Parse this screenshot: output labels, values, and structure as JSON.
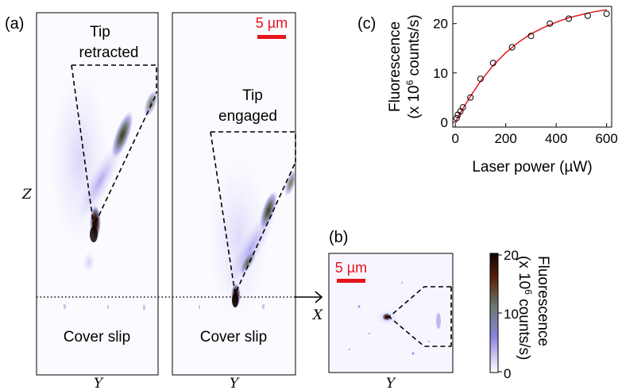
{
  "panel_a": {
    "label": "(a)",
    "left_image": {
      "label_line1": "Tip",
      "label_line2": "retracted"
    },
    "right_image": {
      "label_line1": "Tip",
      "label_line2": "engaged"
    },
    "scalebar": "5 µm",
    "coverslip_left": "Cover slip",
    "coverslip_right": "Cover slip",
    "axis_z": "Z",
    "axis_y_left": "Y",
    "axis_y_right": "Y"
  },
  "panel_b": {
    "label": "(b)",
    "scalebar": "5 µm",
    "axis_x": "X",
    "axis_y": "Y",
    "colorbar": {
      "ticks": [
        "20",
        "10",
        "0"
      ],
      "title_line1": "Fluorescence",
      "title_line2_pre": "(x 10",
      "title_line2_sup": "6",
      "title_line2_post": " counts/s)",
      "colors": [
        "#ffffff",
        "#8c84e0",
        "#6b7a72",
        "#5a1e08",
        "#140402"
      ]
    }
  },
  "panel_c": {
    "label": "(c)",
    "ylabel_line1": "Fluorescence",
    "ylabel_line2_pre": "(x 10",
    "ylabel_line2_sup": "6",
    "ylabel_line2_post": " counts/s)",
    "xlabel": "Laser power (µW)",
    "xticks": [
      "0",
      "200",
      "400",
      "600"
    ],
    "yticks": [
      "0",
      "10",
      "20"
    ],
    "fit_color": "#e8141c"
  },
  "chart_data": {
    "type": "scatter",
    "xlabel": "Laser power (µW)",
    "ylabel": "Fluorescence (x 10^6 counts/s)",
    "xlim": [
      -10,
      620
    ],
    "ylim": [
      -1,
      23.5
    ],
    "xticks": [
      0,
      200,
      400,
      600
    ],
    "yticks": [
      0,
      10,
      20
    ],
    "grid": false,
    "series": [
      {
        "kind": "points",
        "marker": "open-circle",
        "x": [
          5,
          10,
          20,
          30,
          60,
          100,
          150,
          225,
          300,
          375,
          450,
          525,
          600
        ],
        "y": [
          0.8,
          1.5,
          2.2,
          3.0,
          5.0,
          8.8,
          12.0,
          15.2,
          17.5,
          20.0,
          21.0,
          21.6,
          22.0
        ]
      },
      {
        "kind": "fit",
        "color": "#e8141c",
        "x": [
          0,
          25,
          50,
          75,
          100,
          150,
          200,
          250,
          300,
          350,
          400,
          450,
          500,
          550,
          600
        ],
        "y": [
          0,
          2.3,
          4.4,
          6.4,
          8.3,
          11.5,
          14.1,
          16.2,
          17.9,
          19.2,
          20.3,
          21.2,
          21.8,
          22.4,
          22.8
        ]
      }
    ]
  }
}
